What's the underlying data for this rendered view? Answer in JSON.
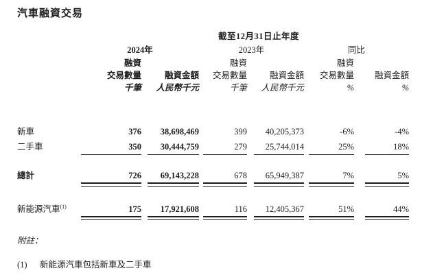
{
  "page": {
    "title": "汽車融資交易"
  },
  "colors": {
    "text": "#1c1c1c",
    "background": "#ffffff"
  },
  "table": {
    "period_header": "截至12月31日止年度",
    "groups": [
      {
        "label": "2024年"
      },
      {
        "label": "2023年"
      },
      {
        "label": "同比"
      }
    ],
    "financing_label": "融資",
    "col_headers": [
      "交易數量",
      "融資金額",
      "交易數量",
      "融資金額",
      "交易數量",
      "融資金額"
    ],
    "units": [
      "千筆",
      "人民幣千元",
      "千筆",
      "人民幣千元",
      "%",
      "%"
    ],
    "rows": [
      {
        "label": "新車",
        "values": [
          "376",
          "38,698,469",
          "399",
          "40,205,373",
          "-6%",
          "-4%"
        ]
      },
      {
        "label": "二手車",
        "values": [
          "350",
          "30,444,759",
          "279",
          "25,744,014",
          "25%",
          "18%"
        ]
      },
      {
        "label": "總計",
        "values": [
          "726",
          "69,143,228",
          "678",
          "65,949,387",
          "7%",
          "5%"
        ]
      },
      {
        "label": "新能源汽車",
        "label_sup": "(1)",
        "values": [
          "175",
          "17,921,608",
          "116",
          "12,405,367",
          "51%",
          "44%"
        ]
      }
    ]
  },
  "notes": {
    "heading": "附註：",
    "items": [
      {
        "marker": "(1)",
        "text": "新能源汽車包括新車及二手車"
      }
    ]
  }
}
